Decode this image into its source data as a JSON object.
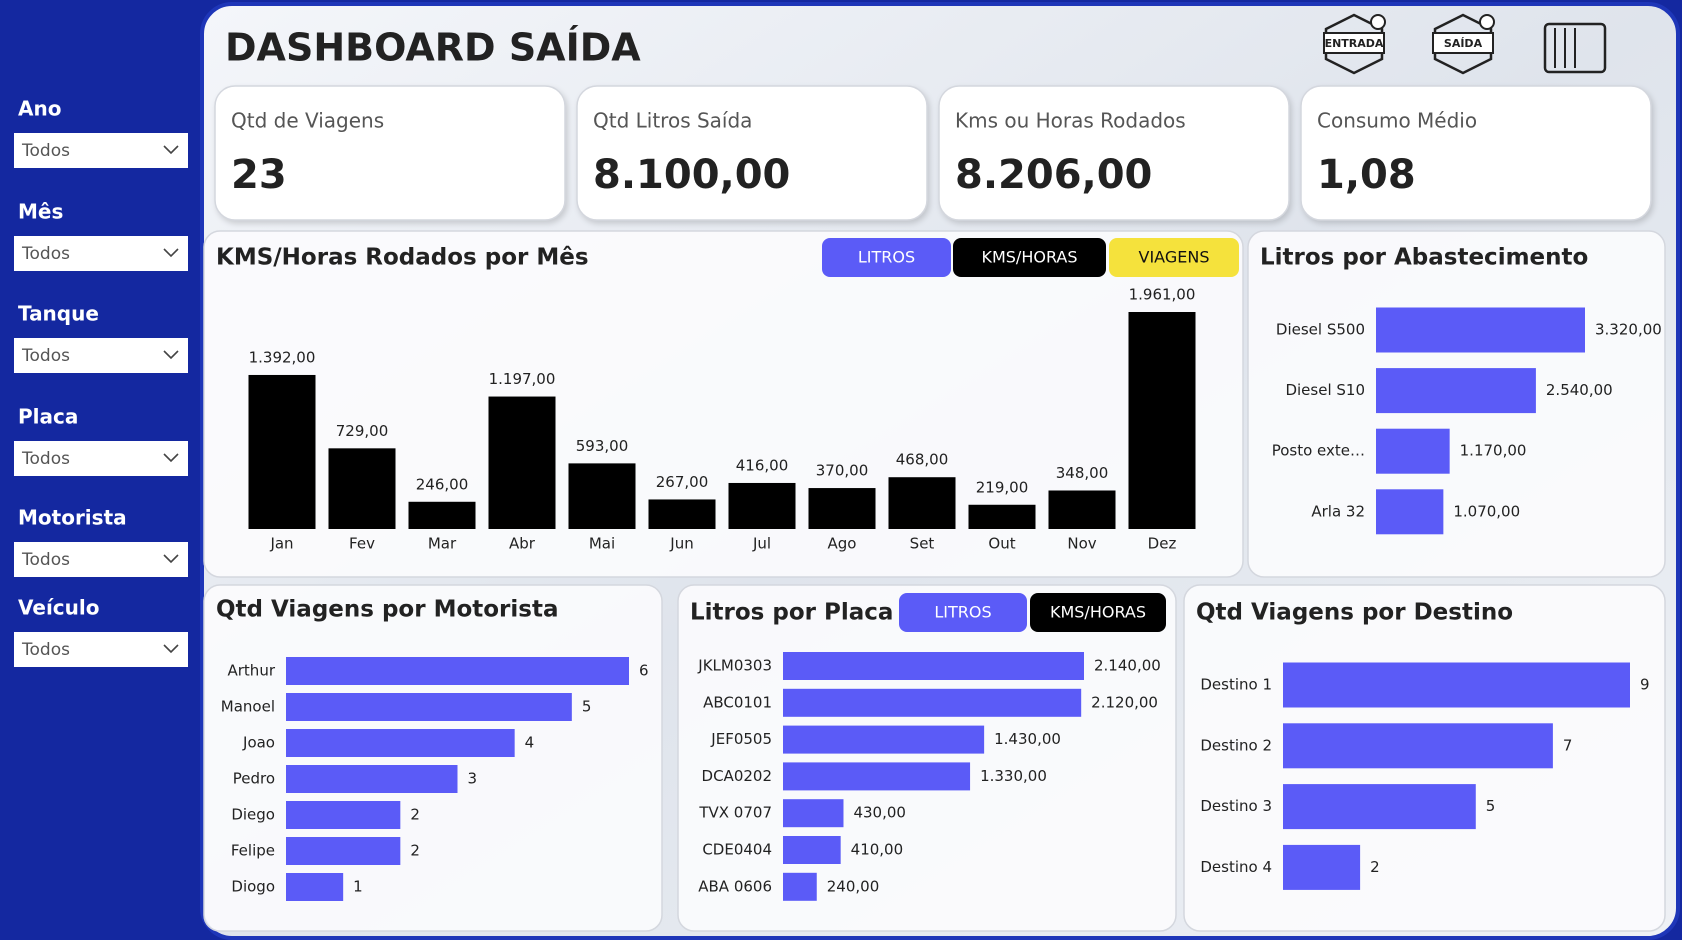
{
  "header": {
    "title": "DASHBOARD SAÍDA",
    "icons": [
      "ENTRADA",
      "SAÍDA"
    ]
  },
  "filters": [
    {
      "label": "Ano",
      "value": "Todos"
    },
    {
      "label": "Mês",
      "value": "Todos"
    },
    {
      "label": "Tanque",
      "value": "Todos"
    },
    {
      "label": "Placa",
      "value": "Todos"
    },
    {
      "label": "Motorista",
      "value": "Todos"
    },
    {
      "label": "Veículo",
      "value": "Todos"
    }
  ],
  "kpis": [
    {
      "label": "Qtd de Viagens",
      "value": "23"
    },
    {
      "label": "Qtd Litros Saída",
      "value": "8.100,00"
    },
    {
      "label": "Kms ou Horas Rodados",
      "value": "8.206,00"
    },
    {
      "label": "Consumo Médio",
      "value": "1,08"
    }
  ],
  "chart_data": [
    {
      "type": "bar",
      "title": "KMS/Horas Rodados por Mês",
      "toggles": [
        "LITROS",
        "KMS/HORAS",
        "VIAGENS"
      ],
      "categories": [
        "Jan",
        "Fev",
        "Mar",
        "Abr",
        "Mai",
        "Jun",
        "Jul",
        "Ago",
        "Set",
        "Out",
        "Nov",
        "Dez"
      ],
      "values": [
        1392,
        729,
        246,
        1197,
        593,
        267,
        416,
        370,
        468,
        219,
        348,
        1961
      ],
      "value_labels": [
        "1.392,00",
        "729,00",
        "246,00",
        "1.197,00",
        "593,00",
        "267,00",
        "416,00",
        "370,00",
        "468,00",
        "219,00",
        "348,00",
        "1.961,00"
      ],
      "color": "#000000"
    },
    {
      "type": "hbar",
      "title": "Litros por Abastecimento",
      "categories": [
        "Diesel S500",
        "Diesel S10",
        "Posto exte…",
        "Arla 32"
      ],
      "values": [
        3320,
        2540,
        1170,
        1070
      ],
      "value_labels": [
        "3.320,00",
        "2.540,00",
        "1.170,00",
        "1.070,00"
      ],
      "color": "#5b5bf7"
    },
    {
      "type": "hbar",
      "title": "Qtd Viagens por Motorista",
      "categories": [
        "Arthur",
        "Manoel",
        "Joao",
        "Pedro",
        "Diego",
        "Felipe",
        "Diogo"
      ],
      "values": [
        6,
        5,
        4,
        3,
        2,
        2,
        1
      ],
      "color": "#5b5bf7"
    },
    {
      "type": "hbar",
      "title": "Litros por Placa",
      "toggles": [
        "LITROS",
        "KMS/HORAS"
      ],
      "categories": [
        "JKLM0303",
        "ABC0101",
        "JEF0505",
        "DCA0202",
        "TVX 0707",
        "CDE0404",
        "ABA 0606"
      ],
      "values": [
        2140,
        2120,
        1430,
        1330,
        430,
        410,
        240
      ],
      "value_labels": [
        "2.140,00",
        "2.120,00",
        "1.430,00",
        "1.330,00",
        "430,00",
        "410,00",
        "240,00"
      ],
      "color": "#5b5bf7"
    },
    {
      "type": "hbar",
      "title": "Qtd Viagens por Destino",
      "categories": [
        "Destino 1",
        "Destino 2",
        "Destino 3",
        "Destino 4"
      ],
      "values": [
        9,
        7,
        5,
        2
      ],
      "color": "#5b5bf7"
    }
  ]
}
